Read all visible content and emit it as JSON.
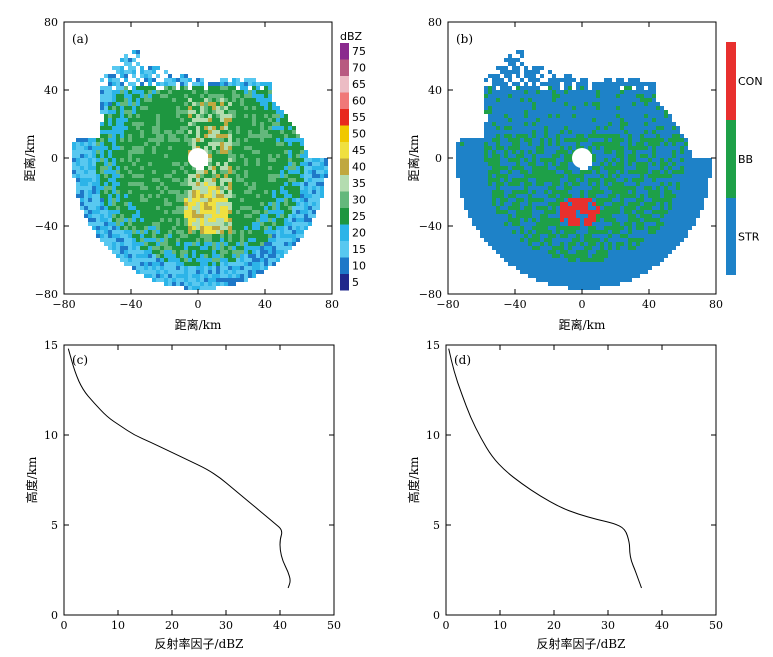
{
  "chart_data": [
    {
      "panel": "(a)",
      "type": "heatmap",
      "xlabel": "距离/km",
      "ylabel": "距离/km",
      "xlim": [
        -80,
        80
      ],
      "ylim": [
        -80,
        80
      ],
      "xticks": [
        "−80",
        "−40",
        "0",
        "40",
        "80"
      ],
      "yticks": [
        "80",
        "40",
        "0",
        "−40",
        "−80"
      ],
      "colorbar_title": "dBZ",
      "colorbar_levels": [
        "75",
        "70",
        "65",
        "60",
        "55",
        "50",
        "45",
        "40",
        "35",
        "30",
        "25",
        "20",
        "15",
        "10",
        "5"
      ],
      "colorbar_colors": [
        "#8a2a8e",
        "#b85a80",
        "#ecbcc4",
        "#f07878",
        "#e8281e",
        "#f0c800",
        "#f0e040",
        "#c0a840",
        "#b4dcb0",
        "#64b87c",
        "#1e9640",
        "#2cb4e8",
        "#58c8f0",
        "#1e78c8",
        "#20288c"
      ]
    },
    {
      "panel": "(b)",
      "type": "heatmap",
      "xlabel": "距离/km",
      "ylabel": "距离/km",
      "xlim": [
        -80,
        80
      ],
      "ylim": [
        -80,
        80
      ],
      "xticks": [
        "−80",
        "−40",
        "0",
        "40",
        "80"
      ],
      "yticks": [
        "80",
        "40",
        "0",
        "−40",
        "−80"
      ],
      "classes": [
        "CON",
        "BB",
        "STR"
      ],
      "class_colors": [
        "#e8302e",
        "#1ea048",
        "#1e82c8"
      ]
    },
    {
      "panel": "(c)",
      "type": "line",
      "xlabel": "反射率因子/dBZ",
      "ylabel": "高度/km",
      "xlim": [
        0,
        50
      ],
      "ylim": [
        0,
        15
      ],
      "xticks": [
        "0",
        "10",
        "20",
        "30",
        "40",
        "50"
      ],
      "yticks": [
        "0",
        "5",
        "10",
        "15"
      ],
      "x": [
        0.8,
        2,
        3.5,
        5.5,
        8,
        10.5,
        13,
        16,
        19.5,
        23,
        26.5,
        29,
        31,
        33,
        35,
        37,
        39,
        40.5,
        40,
        40,
        40.5,
        41.5,
        42,
        41.5
      ],
      "y": [
        14.8,
        13.5,
        12.5,
        11.8,
        11,
        10.5,
        10,
        9.6,
        9.1,
        8.6,
        8.1,
        7.6,
        7.1,
        6.6,
        6.1,
        5.6,
        5.1,
        4.7,
        4.2,
        3.6,
        3.0,
        2.4,
        1.9,
        1.5
      ]
    },
    {
      "panel": "(d)",
      "type": "line",
      "xlabel": "反射率因子/dBZ",
      "ylabel": "高度/km",
      "xlim": [
        0,
        50
      ],
      "ylim": [
        0,
        15
      ],
      "xticks": [
        "0",
        "10",
        "20",
        "30",
        "40",
        "50"
      ],
      "yticks": [
        "0",
        "5",
        "10",
        "15"
      ],
      "x": [
        0.5,
        1.5,
        3,
        4.5,
        6.5,
        8.5,
        11,
        14,
        17.5,
        21,
        24.5,
        28,
        31,
        33.2,
        34,
        34,
        34.3,
        35,
        35.6,
        36.2
      ],
      "y": [
        14.8,
        13.5,
        12.2,
        11,
        9.8,
        8.8,
        8,
        7.3,
        6.6,
        6,
        5.6,
        5.3,
        5.1,
        4.8,
        4.0,
        3.5,
        3.0,
        2.5,
        2.0,
        1.5
      ]
    }
  ]
}
